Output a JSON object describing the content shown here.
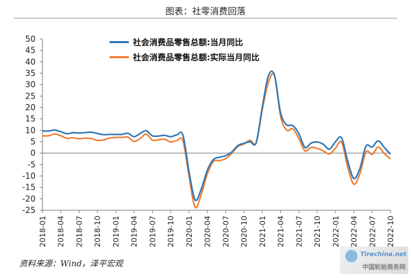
{
  "page": {
    "title": "图表：社零消费回落",
    "source": "资料来源：Wind，泽平宏观",
    "watermark": "中国轮胎商务网",
    "watermark_logo": "Tirechina.net"
  },
  "colors": {
    "series1": "#2e75b6",
    "series2": "#ed7d31",
    "axis": "#7f7f7f"
  },
  "chart_data": {
    "type": "line",
    "title": "图表：社零消费回落",
    "ylim": [
      -25,
      50
    ],
    "y_ticks": [
      50,
      45,
      40,
      35,
      30,
      25,
      20,
      15,
      10,
      5,
      0,
      -5,
      -10,
      -15,
      -20,
      -25
    ],
    "x_tick_labels": [
      "2018-01",
      "2018-04",
      "2018-07",
      "2018-10",
      "2019-01",
      "2019-04",
      "2019-07",
      "2019-10",
      "2020-01",
      "2020-04",
      "2020-07",
      "2020-10",
      "2021-01",
      "2021-04",
      "2021-07",
      "2021-10",
      "2022-01",
      "2022-04",
      "2022-07",
      "2022-10"
    ],
    "grid": false,
    "legend_position": "top",
    "x": [
      "2018-01",
      "2018-02",
      "2018-03",
      "2018-04",
      "2018-05",
      "2018-06",
      "2018-07",
      "2018-08",
      "2018-09",
      "2018-10",
      "2018-11",
      "2018-12",
      "2019-01",
      "2019-02",
      "2019-03",
      "2019-04",
      "2019-05",
      "2019-06",
      "2019-07",
      "2019-08",
      "2019-09",
      "2019-10",
      "2019-11",
      "2019-12",
      "2020-01",
      "2020-02",
      "2020-03",
      "2020-04",
      "2020-05",
      "2020-06",
      "2020-07",
      "2020-08",
      "2020-09",
      "2020-10",
      "2020-11",
      "2020-12",
      "2021-01",
      "2021-02",
      "2021-03",
      "2021-04",
      "2021-05",
      "2021-06",
      "2021-07",
      "2021-08",
      "2021-09",
      "2021-10",
      "2021-11",
      "2021-12",
      "2022-01",
      "2022-02",
      "2022-03",
      "2022-04",
      "2022-05",
      "2022-06",
      "2022-07",
      "2022-08",
      "2022-09",
      "2022-10"
    ],
    "series": [
      {
        "name": "社会消费品零售总额:当月同比",
        "values": [
          9.7,
          9.7,
          10.1,
          9.4,
          8.5,
          9.0,
          8.8,
          9.0,
          9.2,
          8.6,
          8.1,
          8.2,
          8.2,
          8.2,
          8.7,
          7.2,
          8.6,
          9.8,
          7.6,
          7.5,
          7.8,
          7.2,
          8.0,
          8.0,
          -8.0,
          -20.5,
          -15.8,
          -7.5,
          -2.8,
          -1.8,
          -1.1,
          0.5,
          3.3,
          4.3,
          5.0,
          4.6,
          20.0,
          33.8,
          34.2,
          17.7,
          12.4,
          12.1,
          8.5,
          2.5,
          4.4,
          4.9,
          3.9,
          1.7,
          5.0,
          6.7,
          -3.5,
          -11.1,
          -6.7,
          3.1,
          2.7,
          5.4,
          2.5,
          -0.5
        ]
      },
      {
        "name": "社会消费品零售总额:实际当月同比",
        "values": [
          7.6,
          7.6,
          8.4,
          7.6,
          6.5,
          6.7,
          6.3,
          6.6,
          6.4,
          5.6,
          5.8,
          6.6,
          6.9,
          6.9,
          7.0,
          5.1,
          6.4,
          8.4,
          5.7,
          5.9,
          6.1,
          4.9,
          5.5,
          5.5,
          -10.0,
          -23.7,
          -18.1,
          -9.1,
          -3.7,
          -3.3,
          -2.4,
          -0.1,
          2.9,
          4.0,
          5.7,
          4.5,
          19.0,
          31.0,
          34.0,
          16.2,
          10.1,
          10.7,
          6.4,
          1.0,
          2.5,
          2.1,
          1.0,
          -0.3,
          2.2,
          4.8,
          -6.1,
          -13.6,
          -9.0,
          0.6,
          -0.5,
          2.7,
          -0.2,
          -2.5
        ]
      }
    ]
  }
}
